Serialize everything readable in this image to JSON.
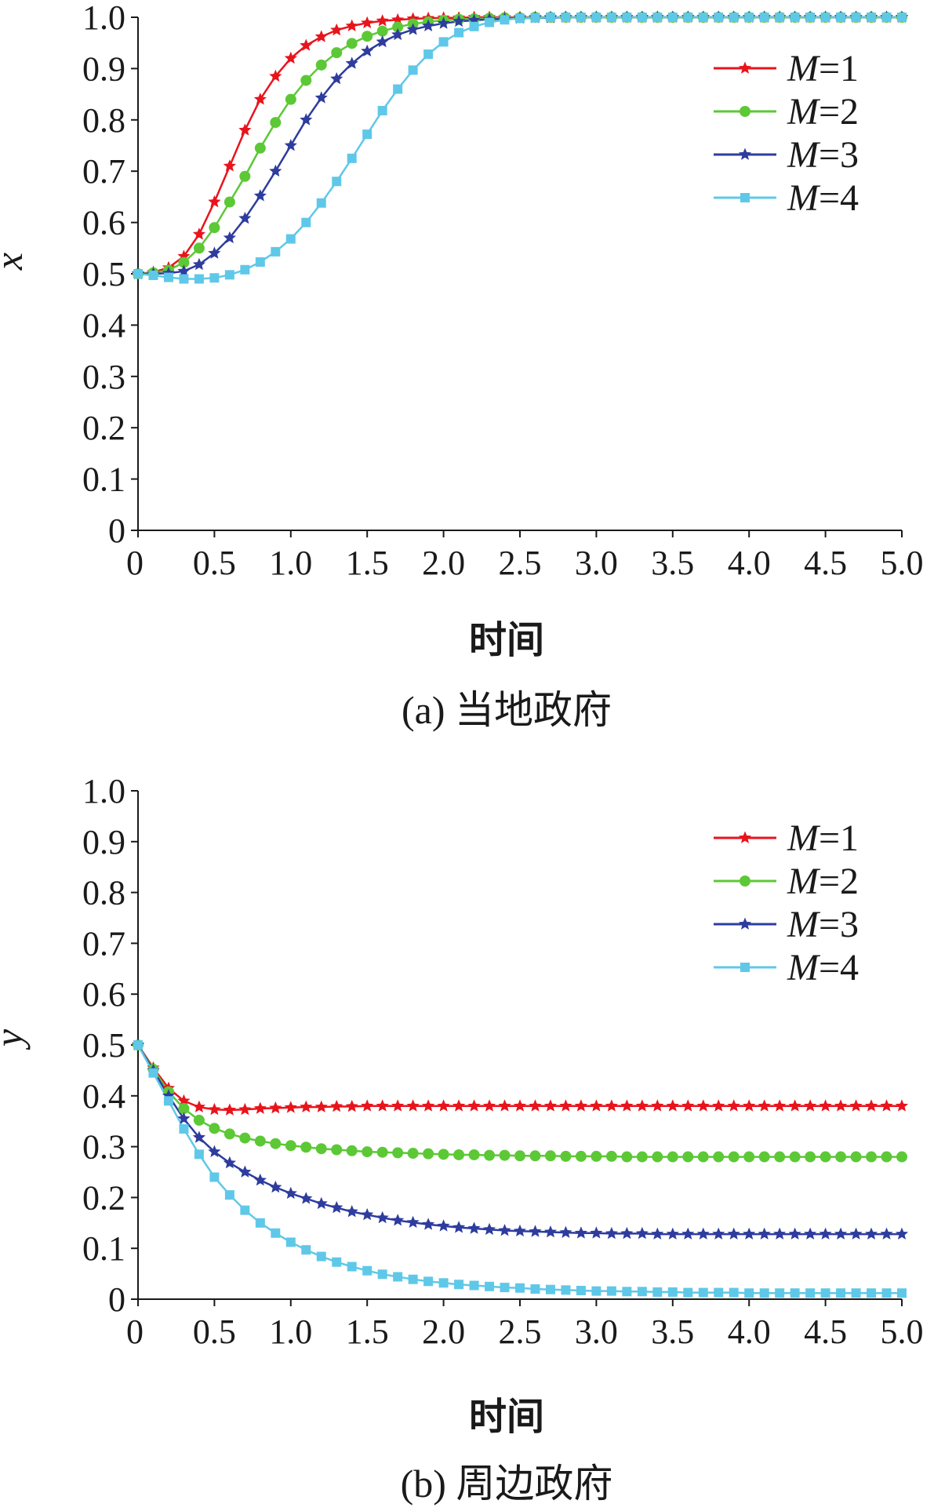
{
  "colors": {
    "M1": "#e8141c",
    "M2": "#5cc836",
    "M3": "#2e3c9e",
    "M4": "#5fc8e8",
    "axis": "#1a1a1a"
  },
  "chart_data": [
    {
      "type": "line",
      "caption": "(a) 当地政府",
      "xlabel": "时间",
      "ylabel": "x",
      "xlim": [
        0,
        5
      ],
      "ylim": [
        0,
        1
      ],
      "xticks": [
        "0",
        "0.5",
        "1.0",
        "1.5",
        "2.0",
        "2.5",
        "3.0",
        "3.5",
        "4.0",
        "4.5",
        "5.0"
      ],
      "yticks": [
        "0",
        "0.1",
        "0.2",
        "0.3",
        "0.4",
        "0.5",
        "0.6",
        "0.7",
        "0.8",
        "0.9",
        "1.0"
      ],
      "grid": false,
      "legend_position": "top-right",
      "x": [
        0,
        0.1,
        0.2,
        0.3,
        0.4,
        0.5,
        0.6,
        0.7,
        0.8,
        0.9,
        1.0,
        1.1,
        1.2,
        1.3,
        1.4,
        1.5,
        1.6,
        1.7,
        1.8,
        1.9,
        2.0,
        2.1,
        2.2,
        2.3,
        2.4,
        2.5,
        2.6,
        2.7,
        2.8,
        2.9,
        3.0,
        3.1,
        3.2,
        3.3,
        3.4,
        3.5,
        3.6,
        3.7,
        3.8,
        3.9,
        4.0,
        4.1,
        4.2,
        4.3,
        4.4,
        4.5,
        4.6,
        4.7,
        4.8,
        4.9,
        5.0
      ],
      "series": [
        {
          "name": "M=1",
          "name_var": "M",
          "name_val": "=1",
          "color_key": "M1",
          "marker": "star",
          "values": [
            0.5,
            0.503,
            0.512,
            0.534,
            0.577,
            0.64,
            0.71,
            0.78,
            0.84,
            0.885,
            0.92,
            0.945,
            0.962,
            0.975,
            0.983,
            0.989,
            0.993,
            0.995,
            0.997,
            0.998,
            0.999,
            0.999,
            1,
            1,
            1,
            1,
            1,
            1,
            1,
            1,
            1,
            1,
            1,
            1,
            1,
            1,
            1,
            1,
            1,
            1,
            1,
            1,
            1,
            1,
            1,
            1,
            1,
            1,
            1,
            1,
            1
          ]
        },
        {
          "name": "M=2",
          "name_var": "M",
          "name_val": "=2",
          "color_key": "M2",
          "marker": "circle",
          "values": [
            0.5,
            0.502,
            0.507,
            0.522,
            0.55,
            0.59,
            0.64,
            0.69,
            0.745,
            0.795,
            0.84,
            0.877,
            0.907,
            0.931,
            0.949,
            0.963,
            0.973,
            0.981,
            0.987,
            0.991,
            0.994,
            0.996,
            0.997,
            0.998,
            0.999,
            0.999,
            1,
            1,
            1,
            1,
            1,
            1,
            1,
            1,
            1,
            1,
            1,
            1,
            1,
            1,
            1,
            1,
            1,
            1,
            1,
            1,
            1,
            1,
            1,
            1,
            1
          ]
        },
        {
          "name": "M=3",
          "name_var": "M",
          "name_val": "=3",
          "color_key": "M3",
          "marker": "star",
          "values": [
            0.5,
            0.5,
            0.501,
            0.505,
            0.518,
            0.54,
            0.57,
            0.608,
            0.652,
            0.7,
            0.75,
            0.8,
            0.843,
            0.88,
            0.91,
            0.934,
            0.952,
            0.966,
            0.976,
            0.983,
            0.988,
            0.992,
            0.994,
            0.996,
            0.997,
            0.998,
            0.999,
            0.999,
            1,
            1,
            1,
            1,
            1,
            1,
            1,
            1,
            1,
            1,
            1,
            1,
            1,
            1,
            1,
            1,
            1,
            1,
            1,
            1,
            1,
            1,
            1
          ]
        },
        {
          "name": "M=4",
          "name_var": "M",
          "name_val": "=4",
          "color_key": "M4",
          "marker": "square",
          "values": [
            0.5,
            0.497,
            0.493,
            0.49,
            0.49,
            0.492,
            0.498,
            0.508,
            0.523,
            0.543,
            0.568,
            0.6,
            0.638,
            0.68,
            0.725,
            0.772,
            0.818,
            0.86,
            0.897,
            0.928,
            0.952,
            0.97,
            0.982,
            0.99,
            0.995,
            0.998,
            0.999,
            1,
            1,
            1,
            1,
            1,
            1,
            1,
            1,
            1,
            1,
            1,
            1,
            1,
            1,
            1,
            1,
            1,
            1,
            1,
            1,
            1,
            1,
            1,
            1
          ]
        }
      ]
    },
    {
      "type": "line",
      "caption": "(b) 周边政府",
      "xlabel": "时间",
      "ylabel": "y",
      "xlim": [
        0,
        5
      ],
      "ylim": [
        0,
        1
      ],
      "xticks": [
        "0",
        "0.5",
        "1.0",
        "1.5",
        "2.0",
        "2.5",
        "3.0",
        "3.5",
        "4.0",
        "4.5",
        "5.0"
      ],
      "yticks": [
        "0",
        "0.1",
        "0.2",
        "0.3",
        "0.4",
        "0.5",
        "0.6",
        "0.7",
        "0.8",
        "0.9",
        "1.0"
      ],
      "grid": false,
      "legend_position": "top-right",
      "x": [
        0,
        0.1,
        0.2,
        0.3,
        0.4,
        0.5,
        0.6,
        0.7,
        0.8,
        0.9,
        1.0,
        1.1,
        1.2,
        1.3,
        1.4,
        1.5,
        1.6,
        1.7,
        1.8,
        1.9,
        2.0,
        2.1,
        2.2,
        2.3,
        2.4,
        2.5,
        2.6,
        2.7,
        2.8,
        2.9,
        3.0,
        3.1,
        3.2,
        3.3,
        3.4,
        3.5,
        3.6,
        3.7,
        3.8,
        3.9,
        4.0,
        4.1,
        4.2,
        4.3,
        4.4,
        4.5,
        4.6,
        4.7,
        4.8,
        4.9,
        5.0
      ],
      "series": [
        {
          "name": "M=1",
          "name_var": "M",
          "name_val": "=1",
          "color_key": "M1",
          "marker": "star",
          "values": [
            0.5,
            0.455,
            0.415,
            0.39,
            0.378,
            0.373,
            0.372,
            0.373,
            0.375,
            0.376,
            0.377,
            0.378,
            0.378,
            0.379,
            0.379,
            0.38,
            0.38,
            0.38,
            0.38,
            0.38,
            0.38,
            0.38,
            0.38,
            0.38,
            0.38,
            0.38,
            0.38,
            0.38,
            0.38,
            0.38,
            0.38,
            0.38,
            0.38,
            0.38,
            0.38,
            0.38,
            0.38,
            0.38,
            0.38,
            0.38,
            0.38,
            0.38,
            0.38,
            0.38,
            0.38,
            0.38,
            0.38,
            0.38,
            0.38,
            0.38,
            0.38
          ]
        },
        {
          "name": "M=2",
          "name_var": "M",
          "name_val": "=2",
          "color_key": "M2",
          "marker": "circle",
          "values": [
            0.5,
            0.452,
            0.408,
            0.375,
            0.352,
            0.336,
            0.325,
            0.317,
            0.311,
            0.306,
            0.302,
            0.299,
            0.296,
            0.294,
            0.292,
            0.29,
            0.289,
            0.288,
            0.287,
            0.286,
            0.285,
            0.284,
            0.284,
            0.283,
            0.283,
            0.282,
            0.282,
            0.282,
            0.281,
            0.281,
            0.281,
            0.281,
            0.28,
            0.28,
            0.28,
            0.28,
            0.28,
            0.28,
            0.28,
            0.28,
            0.28,
            0.28,
            0.28,
            0.28,
            0.28,
            0.28,
            0.28,
            0.28,
            0.28,
            0.28,
            0.28
          ]
        },
        {
          "name": "M=3",
          "name_var": "M",
          "name_val": "=3",
          "color_key": "M3",
          "marker": "star",
          "values": [
            0.5,
            0.45,
            0.4,
            0.355,
            0.318,
            0.29,
            0.268,
            0.25,
            0.234,
            0.22,
            0.208,
            0.198,
            0.188,
            0.18,
            0.172,
            0.166,
            0.16,
            0.155,
            0.151,
            0.147,
            0.144,
            0.141,
            0.139,
            0.137,
            0.135,
            0.134,
            0.133,
            0.132,
            0.131,
            0.13,
            0.13,
            0.129,
            0.129,
            0.129,
            0.128,
            0.128,
            0.128,
            0.128,
            0.128,
            0.128,
            0.128,
            0.128,
            0.128,
            0.128,
            0.128,
            0.128,
            0.128,
            0.128,
            0.128,
            0.128,
            0.128
          ]
        },
        {
          "name": "M=4",
          "name_var": "M",
          "name_val": "=4",
          "color_key": "M4",
          "marker": "square",
          "values": [
            0.5,
            0.445,
            0.39,
            0.335,
            0.285,
            0.24,
            0.205,
            0.175,
            0.15,
            0.13,
            0.112,
            0.097,
            0.084,
            0.073,
            0.064,
            0.056,
            0.049,
            0.044,
            0.039,
            0.035,
            0.032,
            0.029,
            0.027,
            0.025,
            0.023,
            0.022,
            0.02,
            0.019,
            0.018,
            0.017,
            0.016,
            0.016,
            0.015,
            0.015,
            0.014,
            0.014,
            0.013,
            0.013,
            0.013,
            0.013,
            0.012,
            0.012,
            0.012,
            0.012,
            0.012,
            0.012,
            0.012,
            0.012,
            0.012,
            0.012,
            0.012
          ]
        }
      ]
    }
  ]
}
